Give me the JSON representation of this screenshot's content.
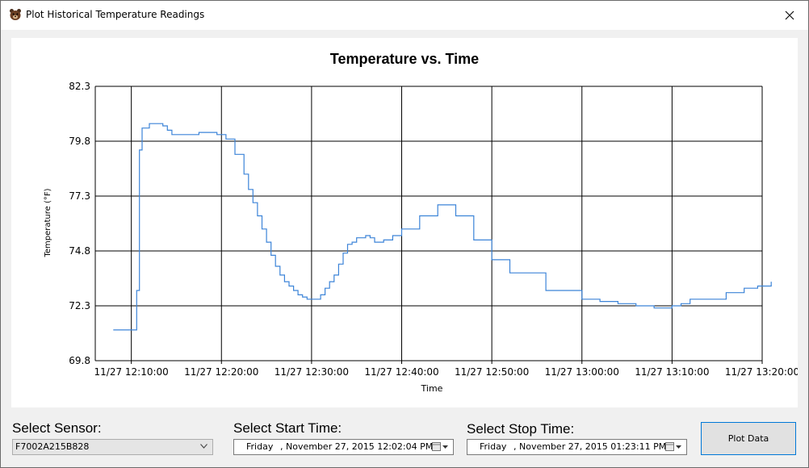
{
  "window": {
    "title": "Plot Historical Temperature Readings"
  },
  "controls": {
    "sensor_label": "Select Sensor:",
    "sensor_value": "F7002A215B828",
    "start_label": "Select Start Time:",
    "start_day": "Friday",
    "start_rest": ", November 27, 2015 12:02:04 PM",
    "stop_label": "Select Stop Time:",
    "stop_day": "Friday",
    "stop_rest": ", November 27, 2015 01:23:11 PM",
    "plot_button": "Plot Data"
  },
  "chart_data": {
    "type": "line",
    "title": "Temperature vs. Time",
    "xlabel": "Time",
    "ylabel": "Temperature (°F)",
    "x_unit": "minutes after 12:00 (Nov 27, 2015)",
    "xlim": [
      6,
      80
    ],
    "ylim": [
      69.8,
      82.3
    ],
    "yticks": [
      82.3,
      79.8,
      77.3,
      74.8,
      72.3,
      69.8
    ],
    "ytick_labels": [
      "82.3",
      "79.8",
      "77.3",
      "74.8",
      "72.3",
      "69.8"
    ],
    "xticks": [
      10,
      20,
      30,
      40,
      50,
      60,
      70,
      80
    ],
    "xtick_labels": [
      "11/27 12:10:00",
      "11/27 12:20:00",
      "11/27 12:30:00",
      "11/27 12:40:00",
      "11/27 12:50:00",
      "11/27 13:00:00",
      "11/27 13:10:00",
      "11/27 13:20:00"
    ],
    "grid": true,
    "series": [
      {
        "color": "#3c84d8",
        "x": [
          8.0,
          10.5,
          10.6,
          10.9,
          11.2,
          11.6,
          12.0,
          13.5,
          14.0,
          14.5,
          16.0,
          17.5,
          18.5,
          19.5,
          20.5,
          21.5,
          22.5,
          23.0,
          23.5,
          24.0,
          24.5,
          25.0,
          25.5,
          26.0,
          26.5,
          27.0,
          27.5,
          28.0,
          28.5,
          29.0,
          29.5,
          30.0,
          31.0,
          31.5,
          32.0,
          32.5,
          33.0,
          33.5,
          34.0,
          34.5,
          35.0,
          35.5,
          36.0,
          36.5,
          37.0,
          38.0,
          39.0,
          40.0,
          42.0,
          44.0,
          46.0,
          48.0,
          50.0,
          52.0,
          56.0,
          60.0,
          62.0,
          64.0,
          66.0,
          68.0,
          70.0,
          71.0,
          72.0,
          74.0,
          76.0,
          78.0,
          79.5,
          81.0
        ],
        "y": [
          71.2,
          71.2,
          73.0,
          79.4,
          80.4,
          80.4,
          80.6,
          80.5,
          80.3,
          80.1,
          80.1,
          80.2,
          80.2,
          80.1,
          79.9,
          79.2,
          78.3,
          77.6,
          77.0,
          76.4,
          75.8,
          75.2,
          74.6,
          74.1,
          73.7,
          73.4,
          73.2,
          73.0,
          72.8,
          72.7,
          72.6,
          72.6,
          72.8,
          73.1,
          73.4,
          73.7,
          74.2,
          74.7,
          75.1,
          75.2,
          75.4,
          75.4,
          75.5,
          75.4,
          75.2,
          75.3,
          75.5,
          75.8,
          76.4,
          76.9,
          76.4,
          75.3,
          74.4,
          73.8,
          73.0,
          72.6,
          72.5,
          72.4,
          72.3,
          72.2,
          72.3,
          72.4,
          72.6,
          72.6,
          72.9,
          73.1,
          73.2,
          73.4
        ]
      }
    ]
  }
}
